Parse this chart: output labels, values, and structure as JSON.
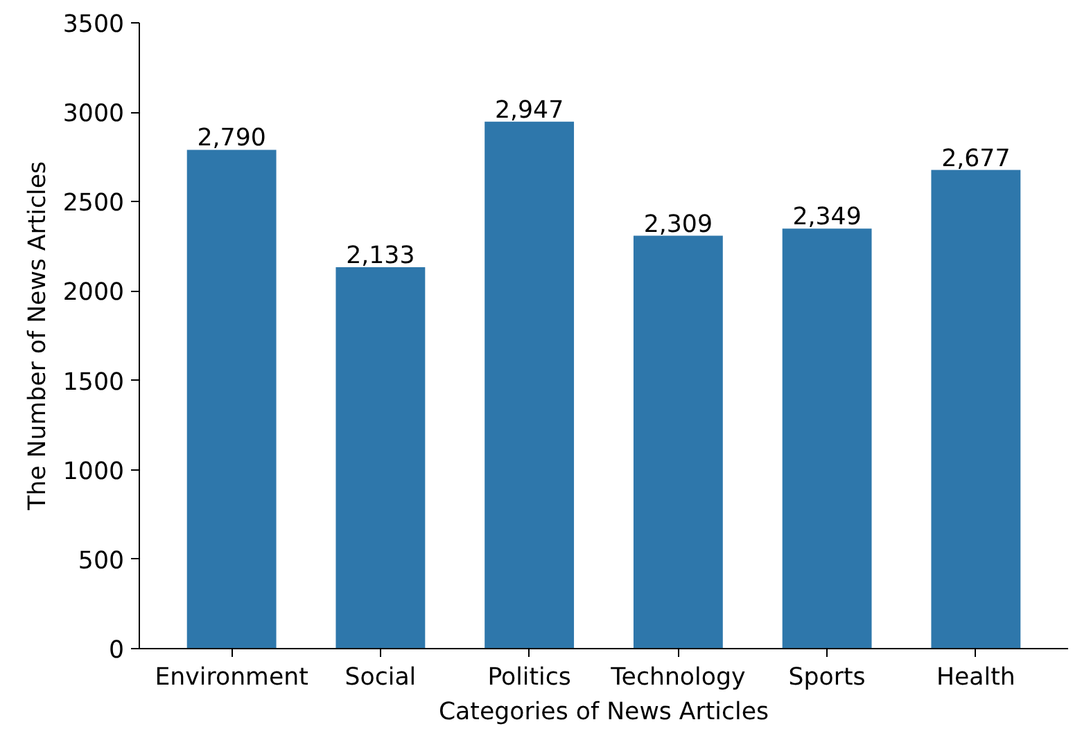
{
  "chart_data": {
    "type": "bar",
    "xlabel": "Categories of News Articles",
    "ylabel": "The Number of News Articles",
    "categories": [
      "Environment",
      "Social",
      "Politics",
      "Technology",
      "Sports",
      "Health"
    ],
    "values": [
      2790,
      2133,
      2947,
      2309,
      2349,
      2677
    ],
    "value_labels": [
      "2,790",
      "2,133",
      "2,947",
      "2,309",
      "2,349",
      "2,677"
    ],
    "color": "#2e77ab",
    "ylim": [
      0,
      3500
    ],
    "yticks": [
      0,
      500,
      1000,
      1500,
      2000,
      2500,
      3000,
      3500
    ],
    "grid": false
  }
}
